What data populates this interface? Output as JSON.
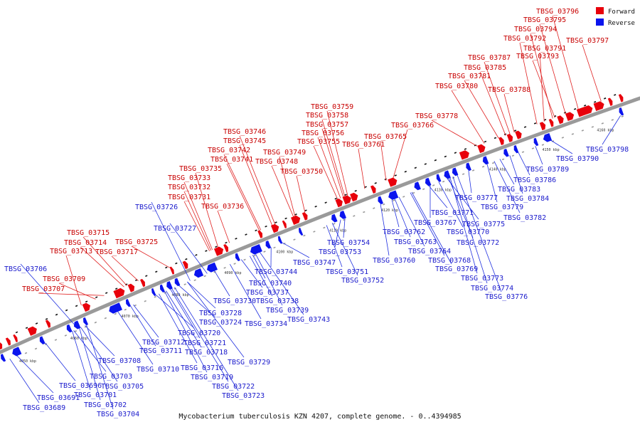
{
  "caption": "Mycobacterium tuberculosis KZN 4207, complete genome. - 0..4394985",
  "legend": {
    "forward": "Forward",
    "reverse": "Reverse"
  },
  "colors": {
    "forward": "#e8000b",
    "reverse": "#0a14ee",
    "backbone": "#9a9a9a",
    "forward_leader": "#e02020",
    "reverse_leader": "#2030e0"
  },
  "kbp_ticks": [
    "4050 kbp",
    "4060 kbp",
    "4070 kbp",
    "4080 kbp",
    "4090 kbp",
    "4100 kbp",
    "4110 kbp",
    "4120 kbp",
    "4130 kbp",
    "4140 kbp",
    "4150 kbp",
    "4160 kbp"
  ],
  "forward_genes": [
    "TBSG_03707",
    "TBSG_03709",
    "TBSG_03713",
    "TBSG_03714",
    "TBSG_03715",
    "TBSG_03717",
    "TBSG_03725",
    "TBSG_03731",
    "TBSG_03732",
    "TBSG_03733",
    "TBSG_03735",
    "TBSG_03736",
    "TBSG_03741",
    "TBSG_03742",
    "TBSG_03745",
    "TBSG_03746",
    "TBSG_03748",
    "TBSG_03749",
    "TBSG_03750",
    "TBSG_03755",
    "TBSG_03756",
    "TBSG_03757",
    "TBSG_03758",
    "TBSG_03759",
    "TBSG_03761",
    "TBSG_03765",
    "TBSG_03766",
    "TBSG_03778",
    "TBSG_03780",
    "TBSG_03781",
    "TBSG_03785",
    "TBSG_03787",
    "TBSG_03788",
    "TBSG_03791",
    "TBSG_03792",
    "TBSG_03793",
    "TBSG_03794",
    "TBSG_03795",
    "TBSG_03796",
    "TBSG_03797"
  ],
  "reverse_genes": [
    "TBSG_03689",
    "TBSG_03691",
    "TBSG_03696",
    "TBSG_03701",
    "TBSG_03702",
    "TBSG_03703",
    "TBSG_03704",
    "TBSG_03705",
    "TBSG_03706",
    "TBSG_03708",
    "TBSG_03710",
    "TBSG_03711",
    "TBSG_03712",
    "TBSG_03716",
    "TBSG_03718",
    "TBSG_03719",
    "TBSG_03720",
    "TBSG_03721",
    "TBSG_03722",
    "TBSG_03723",
    "TBSG_03724",
    "TBSG_03726",
    "TBSG_03727",
    "TBSG_03728",
    "TBSG_03729",
    "TBSG_03730",
    "TBSG_03734",
    "TBSG_03737",
    "TBSG_03738",
    "TBSG_03739",
    "TBSG_03740",
    "TBSG_03743",
    "TBSG_03744",
    "TBSG_03747",
    "TBSG_03751",
    "TBSG_03752",
    "TBSG_03753",
    "TBSG_03754",
    "TBSG_03760",
    "TBSG_03762",
    "TBSG_03763",
    "TBSG_03764",
    "TBSG_03767",
    "TBSG_03768",
    "TBSG_03769",
    "TBSG_03770",
    "TBSG_03771",
    "TBSG_03772",
    "TBSG_03773",
    "TBSG_03774",
    "TBSG_03775",
    "TBSG_03776",
    "TBSG_03777",
    "TBSG_03779",
    "TBSG_03782",
    "TBSG_03783",
    "TBSG_03784",
    "TBSG_03786",
    "TBSG_03789",
    "TBSG_03790",
    "TBSG_03798"
  ]
}
